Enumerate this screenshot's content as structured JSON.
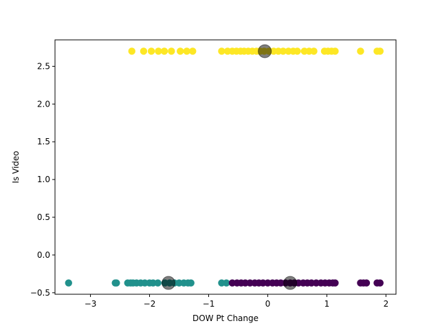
{
  "chart_data": {
    "type": "scatter",
    "title": "",
    "xlabel": "DOW Pt Change",
    "ylabel": "Is Video",
    "xlim": [
      -3.6,
      2.17
    ],
    "ylim": [
      -0.52,
      2.85
    ],
    "xticks": [
      -3,
      -2,
      -1,
      0,
      1,
      2
    ],
    "xtick_labels": [
      "−3",
      "−2",
      "−1",
      "0",
      "1",
      "2"
    ],
    "yticks": [
      -0.5,
      0.0,
      0.5,
      1.0,
      1.5,
      2.0,
      2.5
    ],
    "ytick_labels": [
      "−0.5",
      "0.0",
      "0.5",
      "1.0",
      "1.5",
      "2.0",
      "2.5"
    ],
    "grid": false,
    "legend": "none",
    "series": [
      {
        "color": "#fde725",
        "y": 2.7,
        "x": [
          -2.3,
          -2.1,
          -1.97,
          -1.85,
          -1.75,
          -1.63,
          -1.48,
          -1.37,
          -1.27,
          -0.78,
          -0.68,
          -0.6,
          -0.53,
          -0.46,
          -0.4,
          -0.33,
          -0.26,
          -0.19,
          -0.13,
          -0.06,
          0.02,
          0.1,
          0.18,
          0.26,
          0.35,
          0.43,
          0.5,
          0.62,
          0.7,
          0.78,
          0.96,
          1.02,
          1.08,
          1.14,
          1.57,
          1.85,
          1.9
        ]
      },
      {
        "color": "#21918c",
        "y": -0.37,
        "x": [
          -3.37,
          -2.58,
          -2.56,
          -2.37,
          -2.32,
          -2.28,
          -2.22,
          -2.15,
          -2.08,
          -2.0,
          -1.94,
          -1.86,
          -1.74,
          -1.66,
          -1.58,
          -1.5,
          -1.42,
          -1.35,
          -1.3,
          -0.78,
          -0.7
        ]
      },
      {
        "color": "#440154",
        "y": -0.37,
        "x": [
          -0.6,
          -0.52,
          -0.45,
          -0.38,
          -0.3,
          -0.22,
          -0.15,
          -0.08,
          0.0,
          0.08,
          0.15,
          0.22,
          0.3,
          0.38,
          0.45,
          0.52,
          0.6,
          0.67,
          0.74,
          0.82,
          0.9,
          0.97,
          1.04,
          1.1,
          1.14,
          1.57,
          1.62,
          1.67,
          1.85,
          1.9
        ]
      }
    ],
    "centroids": [
      {
        "x": -0.05,
        "y": 2.7
      },
      {
        "x": -1.68,
        "y": -0.37
      },
      {
        "x": 0.38,
        "y": -0.37
      }
    ],
    "centroid_color": "#000000"
  }
}
